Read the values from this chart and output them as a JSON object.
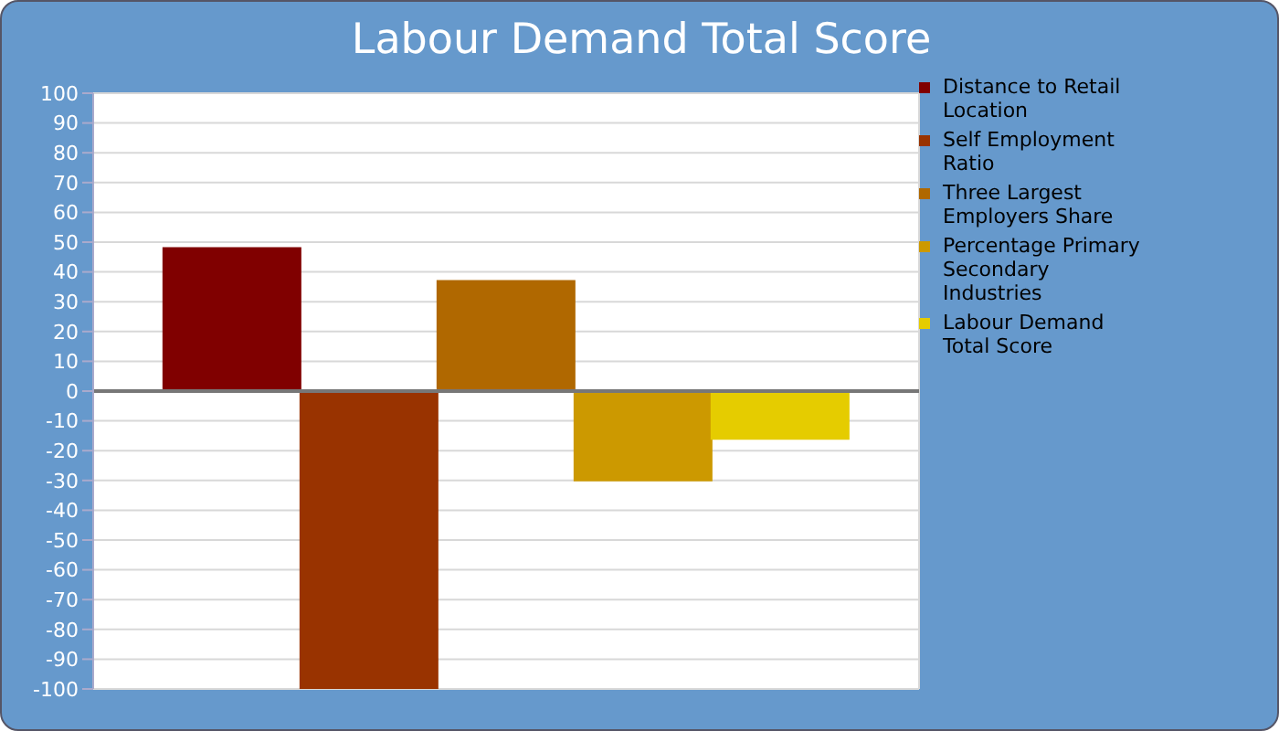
{
  "chart_data": {
    "type": "bar",
    "title": "Labour Demand Total Score",
    "categories": [
      null
    ],
    "series": [
      {
        "name": "Distance to Retail Location",
        "color": "#800000",
        "values": [
          48
        ]
      },
      {
        "name": "Self Employment Ratio",
        "color": "#993300",
        "values": [
          -100
        ]
      },
      {
        "name": "Three Largest Employers Share",
        "color": "#b06800",
        "values": [
          37
        ]
      },
      {
        "name": "Percentage Primary Secondary Industries",
        "color": "#cc9900",
        "values": [
          -30
        ]
      },
      {
        "name": "Labour Demand Total Score",
        "color": "#e5cc00",
        "values": [
          -16
        ]
      }
    ],
    "ylim": [
      -100,
      100
    ],
    "yticks": [
      -100,
      -90,
      -80,
      -70,
      -60,
      -50,
      -40,
      -30,
      -20,
      -10,
      0,
      10,
      20,
      30,
      40,
      50,
      60,
      70,
      80,
      90,
      100
    ],
    "grid": true,
    "legend": "right",
    "tick_labels": "y"
  }
}
